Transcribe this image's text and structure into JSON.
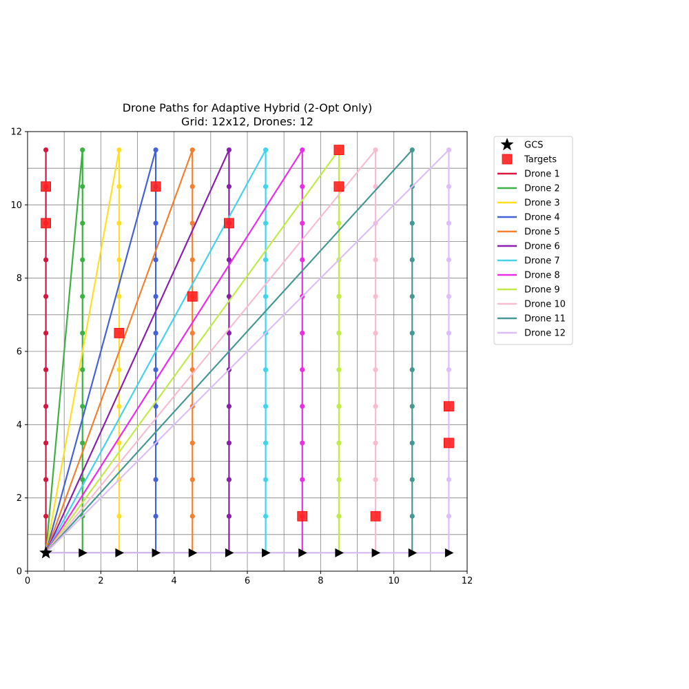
{
  "chart_data": {
    "type": "line",
    "title": "Drone Paths for Adaptive Hybrid (2-Opt Only)",
    "subtitle": "Grid: 12x12, Drones: 12",
    "xlabel": "",
    "ylabel": "",
    "xlim": [
      0,
      12
    ],
    "ylim": [
      0,
      12
    ],
    "xticks": [
      0,
      2,
      4,
      6,
      8,
      10,
      12
    ],
    "yticks": [
      0,
      2,
      4,
      6,
      8,
      10,
      12
    ],
    "grid": true,
    "grid_step": 1,
    "legend_position": "outside-right-top",
    "gcs": {
      "name": "GCS",
      "x": 0.5,
      "y": 0.5,
      "color": "#000000",
      "marker": "star"
    },
    "targets": {
      "name": "Targets",
      "color": "#ff2020",
      "marker": "square",
      "points": [
        [
          0.5,
          10.5
        ],
        [
          0.5,
          9.5
        ],
        [
          3.5,
          10.5
        ],
        [
          5.5,
          9.5
        ],
        [
          4.5,
          7.5
        ],
        [
          2.5,
          6.5
        ],
        [
          8.5,
          11.5
        ],
        [
          8.5,
          10.5
        ],
        [
          7.5,
          1.5
        ],
        [
          9.5,
          1.5
        ],
        [
          11.5,
          4.5
        ],
        [
          11.5,
          3.5
        ]
      ]
    },
    "start_arrows": {
      "marker": "triangle-right",
      "color": "#000000",
      "points": [
        [
          1.5,
          0.5
        ],
        [
          2.5,
          0.5
        ],
        [
          3.5,
          0.5
        ],
        [
          4.5,
          0.5
        ],
        [
          5.5,
          0.5
        ],
        [
          6.5,
          0.5
        ],
        [
          7.5,
          0.5
        ],
        [
          8.5,
          0.5
        ],
        [
          9.5,
          0.5
        ],
        [
          10.5,
          0.5
        ],
        [
          11.5,
          0.5
        ]
      ]
    },
    "series": [
      {
        "name": "Drone 1",
        "color": "#dc143c",
        "column": 0.5
      },
      {
        "name": "Drone 2",
        "color": "#3cb043",
        "column": 1.5
      },
      {
        "name": "Drone 3",
        "color": "#ffdf22",
        "column": 2.5
      },
      {
        "name": "Drone 4",
        "color": "#4361d8",
        "column": 3.5
      },
      {
        "name": "Drone 5",
        "color": "#f28030",
        "column": 4.5
      },
      {
        "name": "Drone 6",
        "color": "#8b1fad",
        "column": 5.5
      },
      {
        "name": "Drone 7",
        "color": "#44d2ed",
        "column": 6.5
      },
      {
        "name": "Drone 8",
        "color": "#ed2be8",
        "column": 7.5
      },
      {
        "name": "Drone 9",
        "color": "#bfec45",
        "column": 8.5
      },
      {
        "name": "Drone 10",
        "color": "#f8bcd2",
        "column": 9.5
      },
      {
        "name": "Drone 11",
        "color": "#469893",
        "column": 10.5
      },
      {
        "name": "Drone 12",
        "color": "#dcbef8",
        "column": 11.5
      }
    ],
    "path_rule": "Each drone starts at GCS (0.5, 0.5), moves along y=0.5 to its column, sweeps up the column through y = 1.5 … 11.5 (waypoints every 1.0), then returns diagonally from (column, 11.5) to GCS."
  }
}
